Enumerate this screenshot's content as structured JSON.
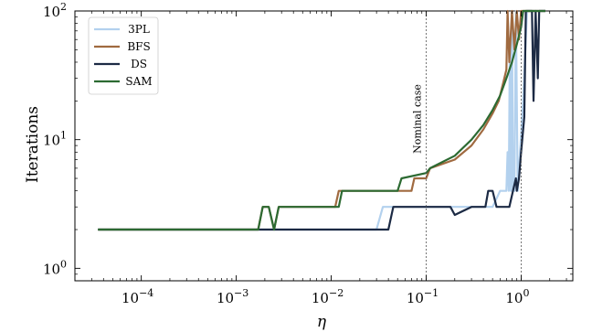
{
  "chart_data": {
    "type": "line",
    "title": "",
    "xlabel": "η",
    "ylabel": "Iterations",
    "xscale": "log",
    "yscale": "log",
    "xlim": [
      2e-05,
      3.5
    ],
    "ylim": [
      0.8,
      100
    ],
    "x_ticks": [
      {
        "value": 0.0001,
        "base": "10",
        "exp": "−4"
      },
      {
        "value": 0.001,
        "base": "10",
        "exp": "−3"
      },
      {
        "value": 0.01,
        "base": "10",
        "exp": "−2"
      },
      {
        "value": 0.1,
        "base": "10",
        "exp": "−1"
      },
      {
        "value": 1,
        "base": "10",
        "exp": "0"
      }
    ],
    "y_ticks": [
      {
        "value": 1,
        "base": "10",
        "exp": "0"
      },
      {
        "value": 10,
        "base": "10",
        "exp": "1"
      },
      {
        "value": 100,
        "base": "10",
        "exp": "2"
      }
    ],
    "grid": false,
    "legend_position": "top-left",
    "annotations": [
      {
        "x": 0.1,
        "text": "Nominal case",
        "style": "dashed-vertical"
      },
      {
        "x": 1,
        "text": "",
        "style": "dashed-vertical"
      }
    ],
    "series": [
      {
        "name": "3PL",
        "color": "#b3d1ee",
        "points": [
          [
            3.5e-05,
            2
          ],
          [
            0.03,
            2
          ],
          [
            0.035,
            3
          ],
          [
            0.5,
            3
          ],
          [
            0.6,
            4
          ],
          [
            0.7,
            4
          ],
          [
            0.72,
            8
          ],
          [
            0.74,
            4
          ],
          [
            0.76,
            60
          ],
          [
            0.78,
            4
          ],
          [
            0.8,
            100
          ],
          [
            0.82,
            4
          ],
          [
            0.85,
            4
          ],
          [
            0.88,
            100
          ],
          [
            0.92,
            4
          ],
          [
            1.05,
            20
          ],
          [
            1.15,
            100
          ],
          [
            1.8,
            100
          ]
        ]
      },
      {
        "name": "BFS",
        "color": "#a06a40",
        "points": [
          [
            3.5e-05,
            2
          ],
          [
            0.0017,
            2
          ],
          [
            0.0019,
            3
          ],
          [
            0.0022,
            3
          ],
          [
            0.0025,
            2
          ],
          [
            0.0028,
            3
          ],
          [
            0.011,
            3
          ],
          [
            0.012,
            4
          ],
          [
            0.07,
            4
          ],
          [
            0.075,
            5
          ],
          [
            0.1,
            5
          ],
          [
            0.11,
            6
          ],
          [
            0.2,
            7
          ],
          [
            0.3,
            9
          ],
          [
            0.4,
            12
          ],
          [
            0.5,
            16
          ],
          [
            0.58,
            20
          ],
          [
            0.65,
            28
          ],
          [
            0.7,
            35
          ],
          [
            0.72,
            100
          ],
          [
            0.75,
            40
          ],
          [
            0.8,
            100
          ],
          [
            0.85,
            50
          ],
          [
            0.9,
            100
          ],
          [
            0.95,
            60
          ],
          [
            1.0,
            100
          ],
          [
            1.8,
            100
          ]
        ]
      },
      {
        "name": "DS",
        "color": "#1c2a44",
        "points": [
          [
            3.5e-05,
            2
          ],
          [
            0.04,
            2
          ],
          [
            0.045,
            3
          ],
          [
            0.18,
            3
          ],
          [
            0.2,
            2.6
          ],
          [
            0.3,
            3
          ],
          [
            0.42,
            3
          ],
          [
            0.45,
            4
          ],
          [
            0.5,
            4
          ],
          [
            0.55,
            3
          ],
          [
            0.75,
            3
          ],
          [
            0.82,
            4
          ],
          [
            0.88,
            5
          ],
          [
            0.9,
            4
          ],
          [
            0.95,
            5
          ],
          [
            1.0,
            8
          ],
          [
            1.08,
            15
          ],
          [
            1.12,
            100
          ],
          [
            1.3,
            100
          ],
          [
            1.35,
            20
          ],
          [
            1.42,
            100
          ],
          [
            1.5,
            30
          ],
          [
            1.55,
            100
          ],
          [
            1.8,
            100
          ]
        ]
      },
      {
        "name": "SAM",
        "color": "#2c6a32",
        "points": [
          [
            3.5e-05,
            2
          ],
          [
            0.0017,
            2
          ],
          [
            0.0019,
            3
          ],
          [
            0.0022,
            3
          ],
          [
            0.0025,
            2
          ],
          [
            0.0028,
            3
          ],
          [
            0.012,
            3
          ],
          [
            0.013,
            4
          ],
          [
            0.05,
            4
          ],
          [
            0.055,
            5
          ],
          [
            0.1,
            5.5
          ],
          [
            0.11,
            6
          ],
          [
            0.2,
            7.5
          ],
          [
            0.3,
            10
          ],
          [
            0.4,
            13
          ],
          [
            0.5,
            17
          ],
          [
            0.6,
            22
          ],
          [
            0.7,
            30
          ],
          [
            0.8,
            40
          ],
          [
            0.9,
            55
          ],
          [
            1.0,
            75
          ],
          [
            1.05,
            100
          ],
          [
            1.8,
            100
          ]
        ]
      }
    ]
  }
}
